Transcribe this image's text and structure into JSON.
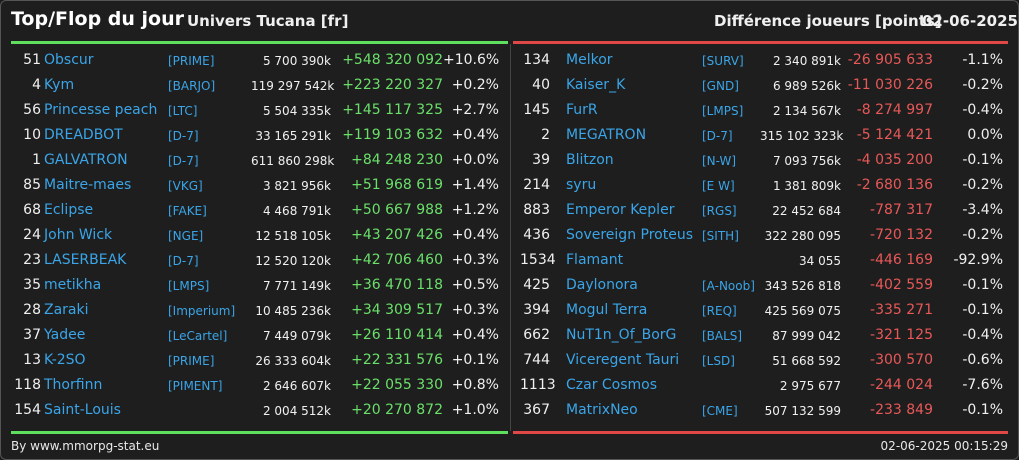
{
  "header": {
    "title": "Top/Flop du jour",
    "universe": "Univers Tucana [fr]",
    "metric": "Différence joueurs [points]",
    "date": "02-06-2025"
  },
  "colors": {
    "gain": "#6ae06a",
    "loss": "#e85858",
    "name": "#3aa5e8",
    "top_line": "#5ee05e",
    "flop_line": "#e04848"
  },
  "top": [
    {
      "rank": "51",
      "name": "Obscur",
      "alliance": "[PRIME]",
      "points": "5 700 390k",
      "diff": "+548 320 092",
      "pct": "+10.6%"
    },
    {
      "rank": "4",
      "name": "Kym",
      "alliance": "[BARJO]",
      "points": "119 297 542k",
      "diff": "+223 220 327",
      "pct": "+0.2%"
    },
    {
      "rank": "56",
      "name": "Princesse peach",
      "alliance": "[LTC]",
      "points": "5 504 335k",
      "diff": "+145 117 325",
      "pct": "+2.7%"
    },
    {
      "rank": "10",
      "name": "DREADBOT",
      "alliance": "[D-7]",
      "points": "33 165 291k",
      "diff": "+119 103 632",
      "pct": "+0.4%"
    },
    {
      "rank": "1",
      "name": "GALVATRON",
      "alliance": "[D-7]",
      "points": "611 860 298k",
      "diff": "+84 248 230",
      "pct": "+0.0%"
    },
    {
      "rank": "85",
      "name": "Maitre-maes",
      "alliance": "[VKG]",
      "points": "3 821 956k",
      "diff": "+51 968 619",
      "pct": "+1.4%"
    },
    {
      "rank": "68",
      "name": "Eclipse",
      "alliance": "[FAKE]",
      "points": "4 468 791k",
      "diff": "+50 667 988",
      "pct": "+1.2%"
    },
    {
      "rank": "24",
      "name": "John Wick",
      "alliance": "[NGE]",
      "points": "12 518 105k",
      "diff": "+43 207 426",
      "pct": "+0.4%"
    },
    {
      "rank": "23",
      "name": "LASERBEAK",
      "alliance": "[D-7]",
      "points": "12 520 120k",
      "diff": "+42 706 460",
      "pct": "+0.3%"
    },
    {
      "rank": "35",
      "name": "metikha",
      "alliance": "[LMPS]",
      "points": "7 771 149k",
      "diff": "+36 470 118",
      "pct": "+0.5%"
    },
    {
      "rank": "28",
      "name": "Zaraki",
      "alliance": "[Imperium]",
      "points": "10 485 236k",
      "diff": "+34 309 517",
      "pct": "+0.3%"
    },
    {
      "rank": "37",
      "name": "Yadee",
      "alliance": "[LeCartel]",
      "points": "7 449 079k",
      "diff": "+26 110 414",
      "pct": "+0.4%"
    },
    {
      "rank": "13",
      "name": "K-2SO",
      "alliance": "[PRIME]",
      "points": "26 333 604k",
      "diff": "+22 331 576",
      "pct": "+0.1%"
    },
    {
      "rank": "118",
      "name": "Thorfinn",
      "alliance": "[PIMENT]",
      "points": "2 646 607k",
      "diff": "+22 055 330",
      "pct": "+0.8%"
    },
    {
      "rank": "154",
      "name": "Saint-Louis",
      "alliance": "",
      "points": "2 004 512k",
      "diff": "+20 270 872",
      "pct": "+1.0%"
    }
  ],
  "flop": [
    {
      "rank": "134",
      "name": "Melkor",
      "alliance": "[SURV]",
      "points": "2 340 891k",
      "diff": "-26 905 633",
      "pct": "-1.1%"
    },
    {
      "rank": "40",
      "name": "Kaiser_K",
      "alliance": "[GND]",
      "points": "6 989 526k",
      "diff": "-11 030 226",
      "pct": "-0.2%"
    },
    {
      "rank": "145",
      "name": "FurR",
      "alliance": "[LMPS]",
      "points": "2 134 567k",
      "diff": "-8 274 997",
      "pct": "-0.4%"
    },
    {
      "rank": "2",
      "name": "MEGATRON",
      "alliance": "[D-7]",
      "points": "315 102 323k",
      "diff": "-5 124 421",
      "pct": "0.0%"
    },
    {
      "rank": "39",
      "name": "Blitzon",
      "alliance": "[N-W]",
      "points": "7 093 756k",
      "diff": "-4 035 200",
      "pct": "-0.1%"
    },
    {
      "rank": "214",
      "name": "syru",
      "alliance": "[E W]",
      "points": "1 381 809k",
      "diff": "-2 680 136",
      "pct": "-0.2%"
    },
    {
      "rank": "883",
      "name": "Emperor Kepler",
      "alliance": "[RGS]",
      "points": "22 452 684",
      "diff": "-787 317",
      "pct": "-3.4%"
    },
    {
      "rank": "436",
      "name": "Sovereign Proteus",
      "alliance": "[SITH]",
      "points": "322 280 095",
      "diff": "-720 132",
      "pct": "-0.2%"
    },
    {
      "rank": "1534",
      "name": "Flamant",
      "alliance": "",
      "points": "34 055",
      "diff": "-446 169",
      "pct": "-92.9%"
    },
    {
      "rank": "425",
      "name": "Daylonora",
      "alliance": "[A-Noob]",
      "points": "343 526 818",
      "diff": "-402 559",
      "pct": "-0.1%"
    },
    {
      "rank": "394",
      "name": "Mogul Terra",
      "alliance": "[REQ]",
      "points": "425 569 075",
      "diff": "-335 271",
      "pct": "-0.1%"
    },
    {
      "rank": "662",
      "name": "NuT1n_Of_BorG",
      "alliance": "[BALS]",
      "points": "87 999 042",
      "diff": "-321 125",
      "pct": "-0.4%"
    },
    {
      "rank": "744",
      "name": "Viceregent Tauri",
      "alliance": "[LSD]",
      "points": "51 668 592",
      "diff": "-300 570",
      "pct": "-0.6%"
    },
    {
      "rank": "1113",
      "name": "Czar Cosmos",
      "alliance": "",
      "points": "2 975 677",
      "diff": "-244 024",
      "pct": "-7.6%"
    },
    {
      "rank": "367",
      "name": "MatrixNeo",
      "alliance": "[CME]",
      "points": "507 132 599",
      "diff": "-233 849",
      "pct": "-0.1%"
    }
  ],
  "footer": {
    "source": "By www.mmorpg-stat.eu",
    "timestamp": "02-06-2025 00:15:29"
  }
}
